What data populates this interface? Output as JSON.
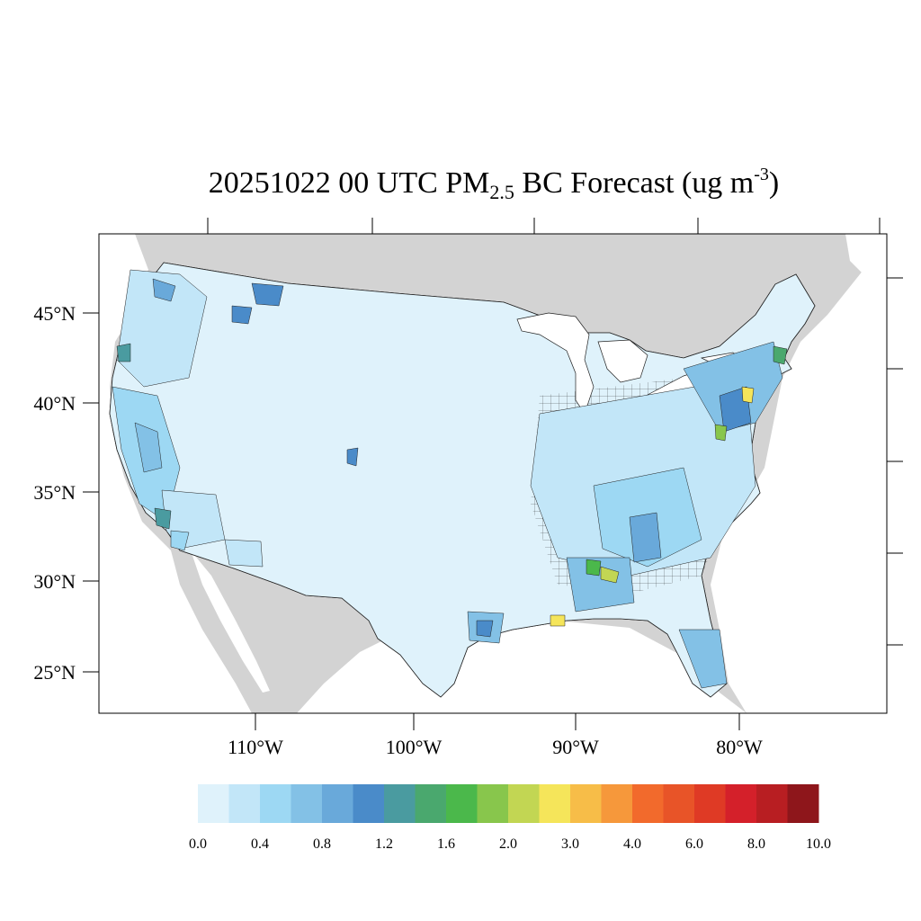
{
  "title": {
    "main": "20251022 00 UTC PM",
    "sub": "2.5",
    "middle": " BC Forecast (ug m",
    "sup": "-3",
    "end": ")"
  },
  "axes": {
    "lat_labels": [
      "45°N",
      "40°N",
      "35°N",
      "30°N",
      "25°N"
    ],
    "lon_labels": [
      "110°W",
      "100°W",
      "90°W",
      "80°W"
    ]
  },
  "colorbar": {
    "colors": [
      "#dff2fb",
      "#c2e6f8",
      "#9dd8f3",
      "#83c1e6",
      "#69a9da",
      "#4a8bc9",
      "#4a9ba0",
      "#4aa86e",
      "#4bb84b",
      "#88c64c",
      "#c2d653",
      "#f5e55a",
      "#f7bd48",
      "#f6983b",
      "#f26a2c",
      "#e85428",
      "#df3a25",
      "#d4202a",
      "#b81e22",
      "#8e161b"
    ],
    "tick_labels": [
      "0.0",
      "0.4",
      "0.8",
      "1.2",
      "1.6",
      "2.0",
      "3.0",
      "4.0",
      "6.0",
      "8.0",
      "10.0"
    ]
  },
  "map_colors": {
    "land_background": "#d3d3d3",
    "water": "#ffffff",
    "base_fill": "#dff2fb"
  }
}
